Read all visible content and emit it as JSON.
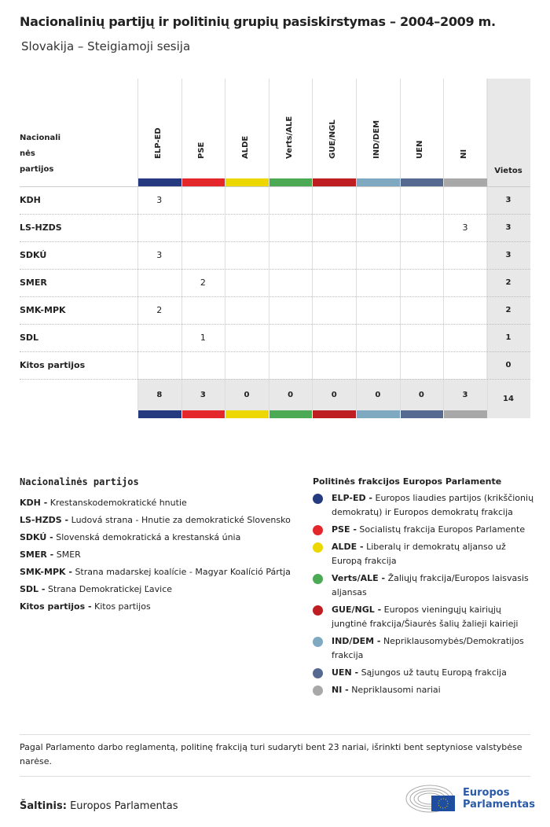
{
  "title": "Nacionalinių partijų ir politinių grupių pasiskirstymas – 2004–2009 m.",
  "subtitle": "Slovakija – Steigiamoji sesija",
  "chart_data": {
    "type": "table",
    "row_header": [
      "Nacionali",
      "nės",
      "partijos"
    ],
    "total_header": "Vietos",
    "groups": [
      {
        "name": "ELP-ED",
        "color": "#263a80"
      },
      {
        "name": "PSE",
        "color": "#e3272a"
      },
      {
        "name": "ALDE",
        "color": "#ecd800"
      },
      {
        "name": "Verts/ALE",
        "color": "#4caa55"
      },
      {
        "name": "GUE/NGL",
        "color": "#be1e22"
      },
      {
        "name": "IND/DEM",
        "color": "#7fa9c0"
      },
      {
        "name": "UEN",
        "color": "#566990"
      },
      {
        "name": "NI",
        "color": "#a8a8a8"
      }
    ],
    "rows": [
      {
        "party": "KDH",
        "values": [
          3,
          null,
          null,
          null,
          null,
          null,
          null,
          null
        ],
        "total": 3
      },
      {
        "party": "LS-HZDS",
        "values": [
          null,
          null,
          null,
          null,
          null,
          null,
          null,
          3
        ],
        "total": 3
      },
      {
        "party": "SDKÚ",
        "values": [
          3,
          null,
          null,
          null,
          null,
          null,
          null,
          null
        ],
        "total": 3
      },
      {
        "party": "SMER",
        "values": [
          null,
          2,
          null,
          null,
          null,
          null,
          null,
          null
        ],
        "total": 2
      },
      {
        "party": "SMK-MPK",
        "values": [
          2,
          null,
          null,
          null,
          null,
          null,
          null,
          null
        ],
        "total": 2
      },
      {
        "party": "SDL",
        "values": [
          null,
          1,
          null,
          null,
          null,
          null,
          null,
          null
        ],
        "total": 1
      },
      {
        "party": "Kitos partijos",
        "values": [
          null,
          null,
          null,
          null,
          null,
          null,
          null,
          null
        ],
        "total": 0
      }
    ],
    "totals": [
      8,
      3,
      0,
      0,
      0,
      0,
      0,
      3
    ],
    "grand_total": 14
  },
  "legend_national": {
    "heading": "Nacionalinės partijos",
    "items": [
      {
        "abbr": "KDH -",
        "name": "Krestanskodemokratické hnutie"
      },
      {
        "abbr": "LS-HZDS -",
        "name": "Ludová strana - Hnutie za demokratické Slovensko"
      },
      {
        "abbr": "SDKÚ -",
        "name": "Slovenská demokratická a krestanská únia"
      },
      {
        "abbr": "SMER -",
        "name": "SMER"
      },
      {
        "abbr": "SMK-MPK -",
        "name": "Strana madarskej koalície - Magyar Koalíció Pártja"
      },
      {
        "abbr": "SDL -",
        "name": "Strana Demokratickej Ľavice"
      },
      {
        "abbr": "Kitos partijos -",
        "name": "Kitos partijos"
      }
    ]
  },
  "legend_groups": {
    "heading": "Politinės frakcijos Europos Parlamente",
    "items": [
      {
        "abbr": "ELP-ED -",
        "name": "Europos liaudies partijos (krikščionių demokratų) ir Europos demokratų frakcija",
        "color": "#263a80"
      },
      {
        "abbr": "PSE -",
        "name": "Socialistų frakcija Europos Parlamente",
        "color": "#e3272a"
      },
      {
        "abbr": "ALDE -",
        "name": "Liberalų ir demokratų aljanso už Europą frakcija",
        "color": "#ecd800"
      },
      {
        "abbr": "Verts/ALE -",
        "name": "Žaliųjų frakcija/Europos laisvasis aljansas",
        "color": "#4caa55"
      },
      {
        "abbr": "GUE/NGL -",
        "name": "Europos vieningųjų kairiųjų jungtinė frakcija/Šiaurės šalių žalieji kairieji",
        "color": "#be1e22"
      },
      {
        "abbr": "IND/DEM -",
        "name": "Nepriklausomybės/Demokratijos frakcija",
        "color": "#7fa9c0"
      },
      {
        "abbr": "UEN -",
        "name": "Sąjungos už tautų Europą frakcija",
        "color": "#566990"
      },
      {
        "abbr": "NI -",
        "name": "Nepriklausomi nariai",
        "color": "#a8a8a8"
      }
    ]
  },
  "note": "Pagal Parlamento darbo reglamentą, politinę frakciją turi sudaryti bent 23 nariai, išrinkti bent septyniose valstybėse narėse.",
  "source": {
    "label": "Šaltinis:",
    "value": "Europos Parlamentas"
  },
  "logo": {
    "line1": "Europos",
    "line2": "Parlamentas"
  }
}
